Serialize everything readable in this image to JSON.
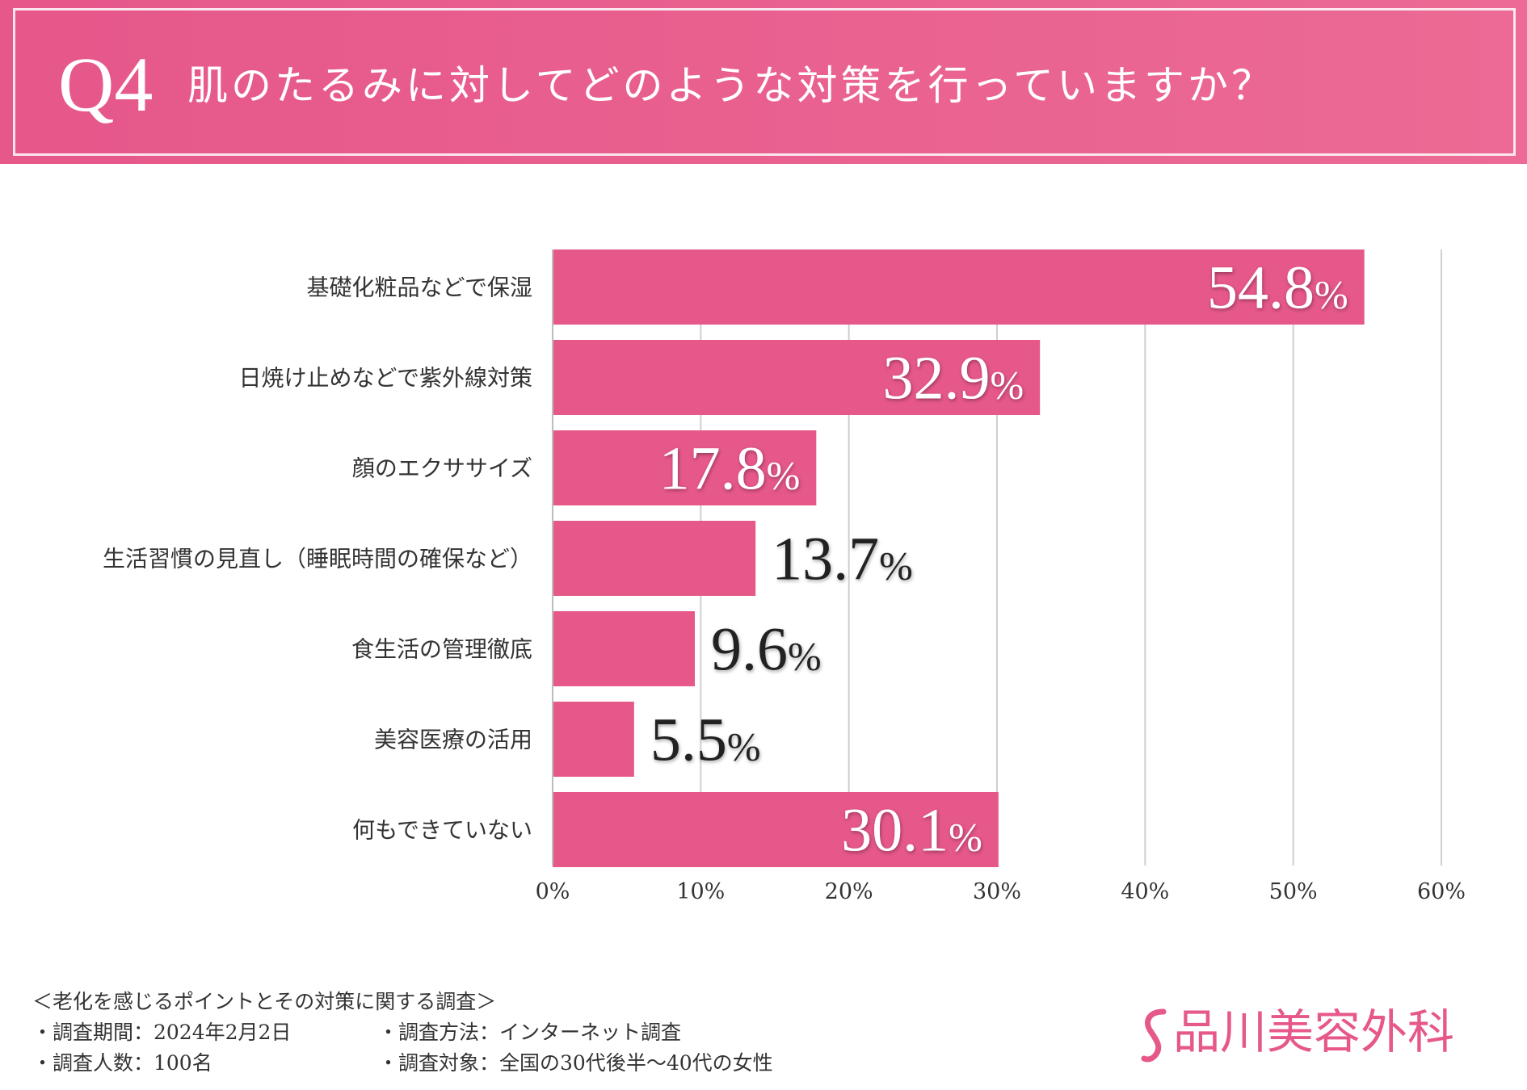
{
  "header": {
    "q_label": "Q4",
    "question": "肌のたるみに対してどのような対策を行っていますか？"
  },
  "chart_data": {
    "type": "bar",
    "orientation": "horizontal",
    "categories": [
      "基礎化粧品などで保湿",
      "日焼け止めなどで紫外線対策",
      "顔のエクササイズ",
      "生活習慣の見直し（睡眠時間の確保など）",
      "食生活の管理徹底",
      "美容医療の活用",
      "何もできていない"
    ],
    "values": [
      54.8,
      32.9,
      17.8,
      13.7,
      9.6,
      5.5,
      30.1
    ],
    "value_labels": [
      "54.8",
      "32.9",
      "17.8",
      "13.7",
      "9.6",
      "5.5",
      "30.1"
    ],
    "value_unit": "%",
    "xlim": [
      0,
      60
    ],
    "xticks": [
      0,
      10,
      20,
      30,
      40,
      50,
      60
    ],
    "xtick_labels": [
      "0%",
      "10%",
      "20%",
      "30%",
      "40%",
      "50%",
      "60%"
    ],
    "grid": true,
    "bar_color": "#e6578a",
    "inside_label_color": "#ffffff",
    "outside_label_color": "#222222"
  },
  "footer": {
    "survey_title": "＜老化を感じるポイントとその対策に関する調査＞",
    "period": "・調査期間：2024年2月2日",
    "method": "・調査方法：インターネット調査",
    "count": "・調査人数：100名",
    "target": "・調査対象：全国の30代後半〜40代の女性"
  },
  "brand": {
    "name": "品川美容外科",
    "color": "#e6578a"
  }
}
